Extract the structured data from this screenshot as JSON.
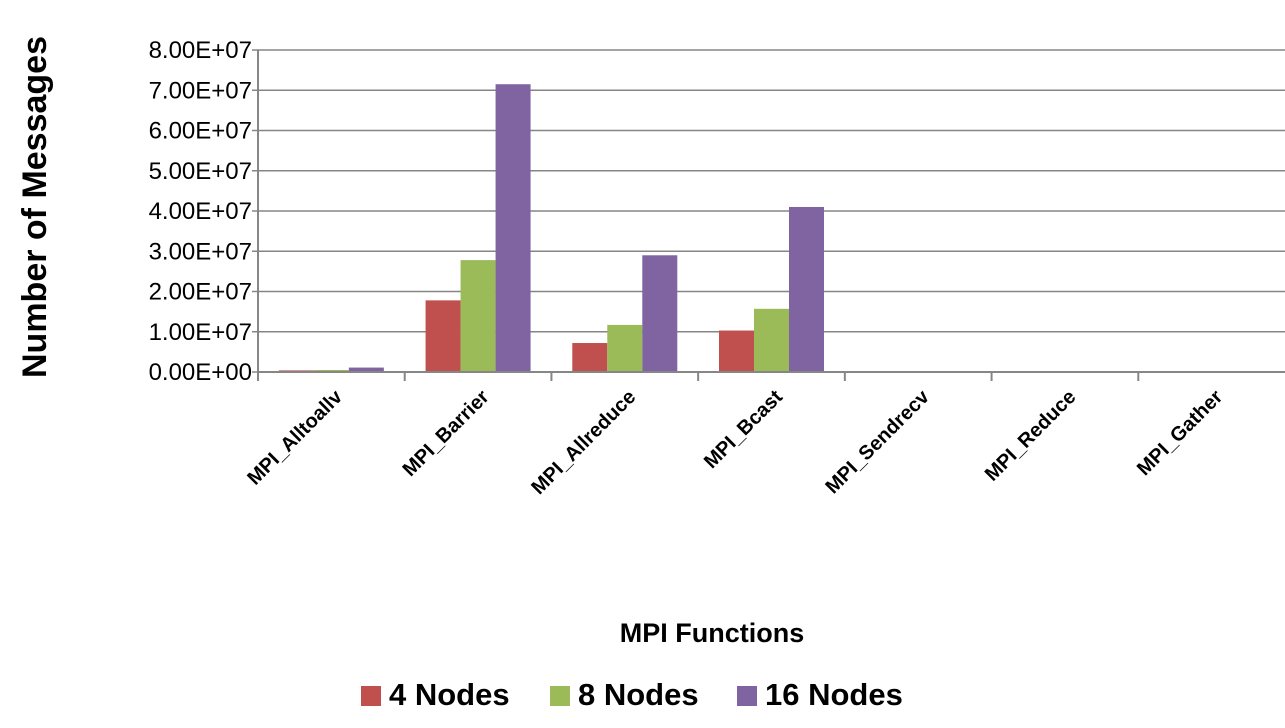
{
  "chart_data": {
    "type": "bar",
    "xlabel": "MPI Functions",
    "ylabel": "Number of Messages",
    "ylim": [
      0,
      80000000
    ],
    "ytick_step": 10000000,
    "yticks": [
      "0.00E+00",
      "1.00E+07",
      "2.00E+07",
      "3.00E+07",
      "4.00E+07",
      "5.00E+07",
      "6.00E+07",
      "7.00E+07",
      "8.00E+07"
    ],
    "grid": true,
    "legend_position": "bottom",
    "categories": [
      "MPI_Alltoallv",
      "MPI_Barrier",
      "MPI_Allreduce",
      "MPI_Bcast",
      "MPI_Sendrecv",
      "MPI_Reduce",
      "MPI_Gather"
    ],
    "series": [
      {
        "name": "4 Nodes",
        "color": "#C0504D",
        "values": [
          400000,
          17800000,
          7200000,
          10300000,
          200000,
          200000,
          200000
        ]
      },
      {
        "name": "8 Nodes",
        "color": "#9BBB59",
        "values": [
          500000,
          27800000,
          11700000,
          15700000,
          200000,
          200000,
          200000
        ]
      },
      {
        "name": "16 Nodes",
        "color": "#8064A2",
        "values": [
          1100000,
          71500000,
          29000000,
          41000000,
          200000,
          200000,
          200000
        ]
      }
    ]
  }
}
